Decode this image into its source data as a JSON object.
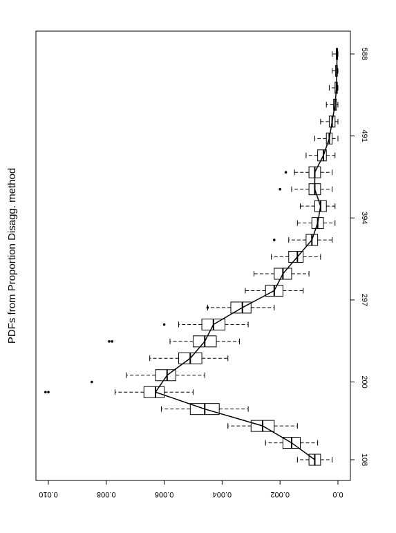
{
  "chart_data": {
    "type": "boxplot",
    "title": "PDFs from Proportion Disagg. method",
    "x": [
      108,
      128,
      148,
      168,
      188,
      208,
      228,
      248,
      268,
      288,
      308,
      328,
      348,
      368,
      388,
      408,
      428,
      448,
      468,
      488,
      508,
      528,
      548,
      568,
      588
    ],
    "boxes": {
      "low": [
        0.0002,
        0.0007,
        0.0014,
        0.0031,
        0.005,
        0.0046,
        0.0038,
        0.0034,
        0.0031,
        0.0022,
        0.0012,
        0.001,
        0.0006,
        0.0002,
        0.0001,
        0.0001,
        0.0002,
        0.0002,
        0.0001,
        0,
        0,
        0,
        0,
        0,
        0
      ],
      "q1": [
        0.0006,
        0.0013,
        0.0022,
        0.0041,
        0.006,
        0.0056,
        0.0047,
        0.0042,
        0.0039,
        0.003,
        0.0019,
        0.0016,
        0.0012,
        0.0007,
        0.0005,
        0.0004,
        0.0006,
        0.0006,
        0.0004,
        0.0002,
        0.0001,
        5e-05,
        2e-05,
        2e-05,
        1e-05
      ],
      "median": [
        0.0008,
        0.0016,
        0.0026,
        0.0046,
        0.0063,
        0.0059,
        0.0051,
        0.0046,
        0.0043,
        0.0033,
        0.0022,
        0.0019,
        0.0014,
        0.0009,
        0.0007,
        0.0006,
        0.0008,
        0.0008,
        0.0005,
        0.0003,
        0.0002,
        0.0001,
        5e-05,
        4e-05,
        3e-05
      ],
      "q3": [
        0.001,
        0.0019,
        0.003,
        0.0051,
        0.0067,
        0.0063,
        0.0055,
        0.005,
        0.0047,
        0.0037,
        0.0025,
        0.0022,
        0.0017,
        0.0011,
        0.0009,
        0.0008,
        0.001,
        0.001,
        0.0007,
        0.0004,
        0.0003,
        0.00015,
        0.0001,
        8e-05,
        6e-05
      ],
      "high": [
        0.0014,
        0.0025,
        0.0038,
        0.0061,
        0.0077,
        0.0073,
        0.0065,
        0.0058,
        0.0055,
        0.0045,
        0.0032,
        0.0029,
        0.0023,
        0.0017,
        0.0014,
        0.0013,
        0.0016,
        0.0015,
        0.0011,
        0.0008,
        0.0006,
        0.0004,
        0.0003,
        0.0002,
        0.0002
      ]
    },
    "outliers": {
      "x": [
        188,
        188,
        200,
        248,
        248,
        268,
        288,
        368,
        428,
        448
      ],
      "values": [
        0.0101,
        0.01,
        0.0085,
        0.0079,
        0.0078,
        0.006,
        0.0045,
        0.0022,
        0.002,
        0.0018
      ]
    },
    "xlim": [
      83.5,
      615
    ],
    "xticks": [
      108,
      200,
      297,
      394,
      491,
      588
    ],
    "ylim": [
      -0.00043,
      0.01043
    ],
    "yticks": [
      {
        "value": 0,
        "label": "0.0"
      },
      0.002,
      0.004,
      0.006,
      0.008,
      {
        "value": 0.01,
        "label": "0.010"
      }
    ]
  }
}
